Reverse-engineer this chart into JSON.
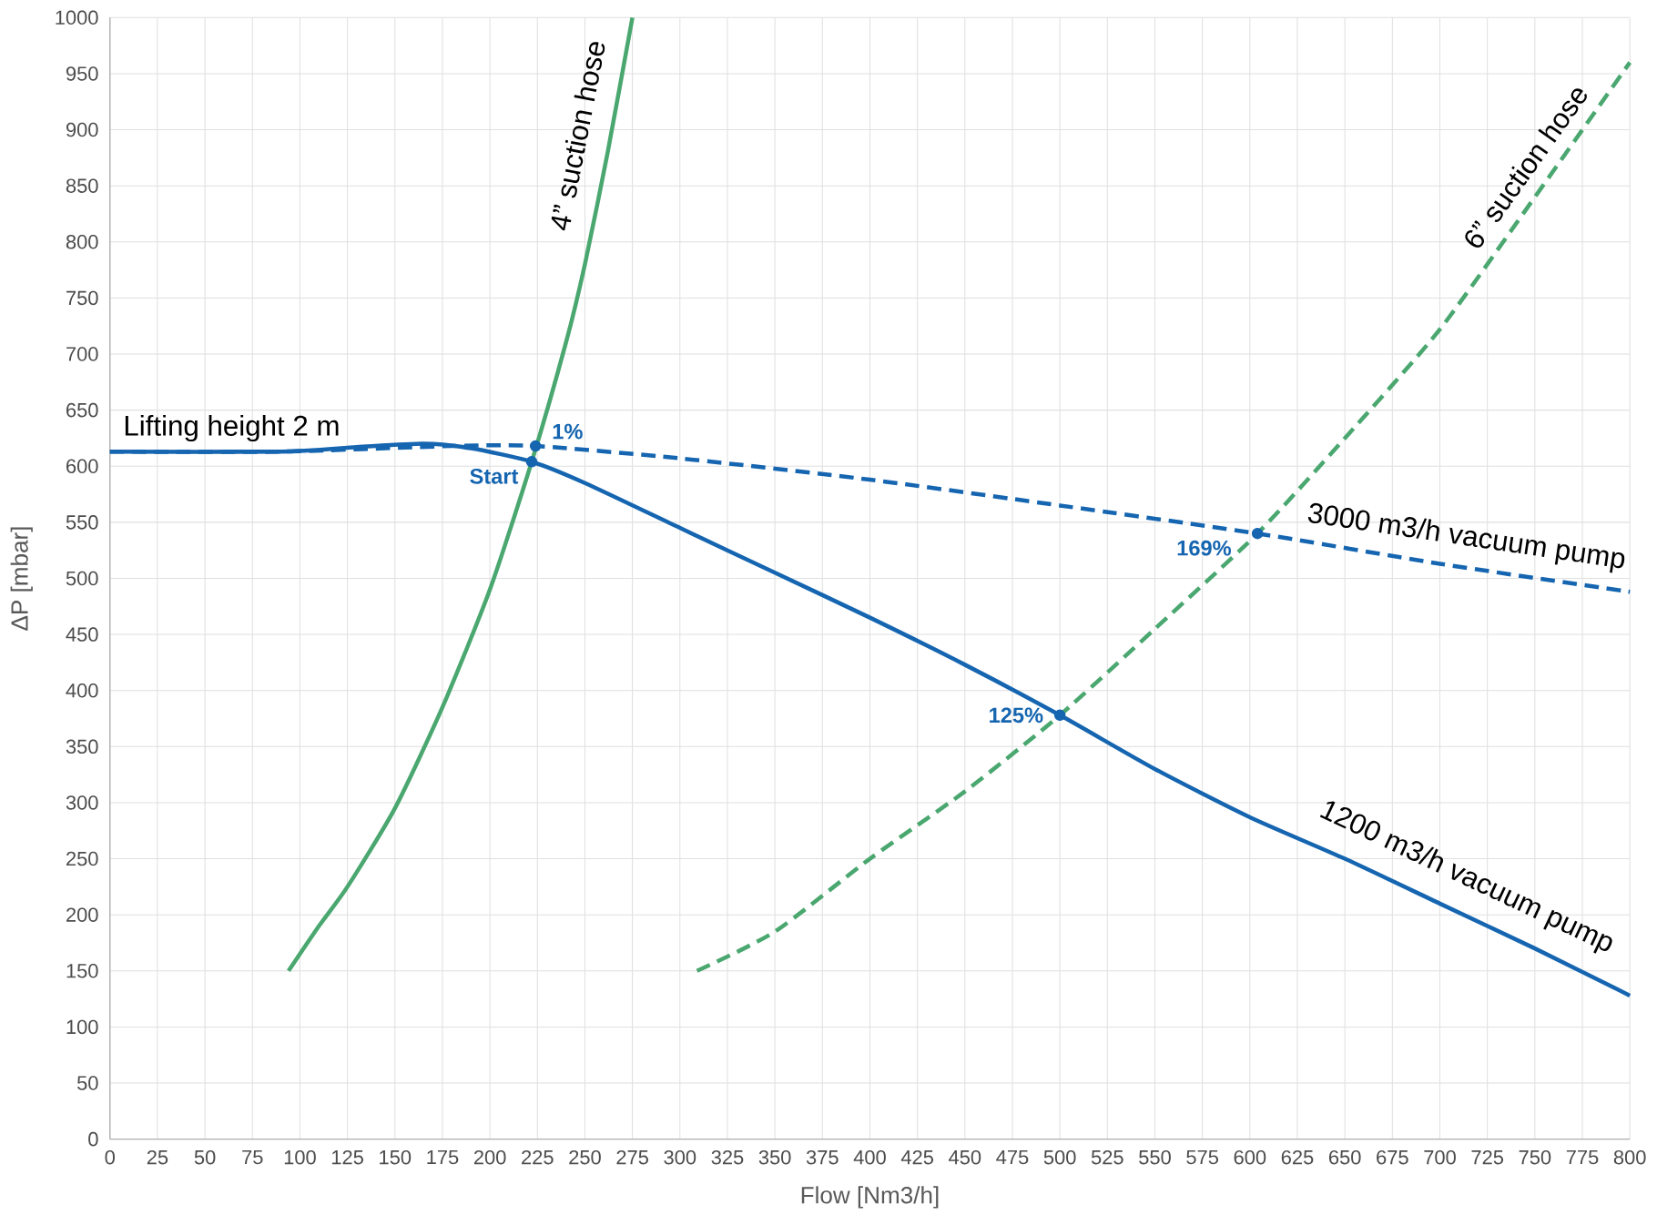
{
  "chart_data": {
    "type": "line",
    "xlabel": "Flow [Nm3/h]",
    "ylabel": "ΔP [mbar]",
    "xlim": [
      0,
      800
    ],
    "ylim": [
      0,
      1000
    ],
    "xticks": [
      0,
      25,
      50,
      75,
      100,
      125,
      150,
      175,
      200,
      225,
      250,
      275,
      300,
      325,
      350,
      375,
      400,
      425,
      450,
      475,
      500,
      525,
      550,
      575,
      600,
      625,
      650,
      675,
      700,
      725,
      750,
      775,
      800
    ],
    "yticks": [
      0,
      50,
      100,
      150,
      200,
      250,
      300,
      350,
      400,
      450,
      500,
      550,
      600,
      650,
      700,
      750,
      800,
      850,
      900,
      950,
      1000
    ],
    "grid": true,
    "series": [
      {
        "name": "4” suction hose",
        "color": "#4aa76f",
        "line_style": "solid",
        "x": [
          94,
          110,
          125,
          150,
          175,
          200,
          222,
          240,
          250,
          262,
          275
        ],
        "values": [
          150,
          190,
          225,
          295,
          385,
          490,
          604,
          710,
          780,
          880,
          1000
        ]
      },
      {
        "name": "6” suction hose",
        "color": "#4aa76f",
        "line_style": "dashed",
        "x": [
          309,
          350,
          400,
          450,
          500,
          550,
          604,
          650,
          700,
          750,
          800
        ],
        "values": [
          150,
          185,
          250,
          310,
          378,
          455,
          540,
          625,
          722,
          840,
          960
        ]
      },
      {
        "name": "3000 m3/h vacuum pump",
        "color": "#1565b0",
        "line_style": "dashed",
        "x": [
          0,
          90,
          180,
          224,
          300,
          400,
          500,
          604,
          700,
          800
        ],
        "values": [
          613,
          613,
          618,
          618,
          607,
          588,
          565,
          540,
          513,
          488
        ]
      },
      {
        "name": "1200 m3/h vacuum pump",
        "color": "#1565b0",
        "line_style": "solid",
        "x": [
          0,
          90,
          130,
          165,
          190,
          222,
          250,
          300,
          350,
          400,
          450,
          500,
          550,
          600,
          650,
          700,
          750,
          800
        ],
        "values": [
          613,
          613,
          617,
          620,
          616,
          604,
          585,
          545,
          505,
          465,
          423,
          378,
          330,
          287,
          250,
          210,
          170,
          128
        ]
      },
      {
        "type": "scatter",
        "marker": "circle",
        "color": "#1565b0",
        "x": [
          224,
          222,
          500,
          604
        ],
        "values": [
          618,
          604,
          378,
          540
        ]
      }
    ],
    "annotations": [
      {
        "text": "Lifting height 2 m",
        "x": 5,
        "y": 613
      },
      {
        "text": "1%",
        "x": 224,
        "y": 618
      },
      {
        "text": "Start",
        "x": 222,
        "y": 604
      },
      {
        "text": "125%",
        "x": 500,
        "y": 378
      },
      {
        "text": "169%",
        "x": 604,
        "y": 540
      }
    ]
  }
}
